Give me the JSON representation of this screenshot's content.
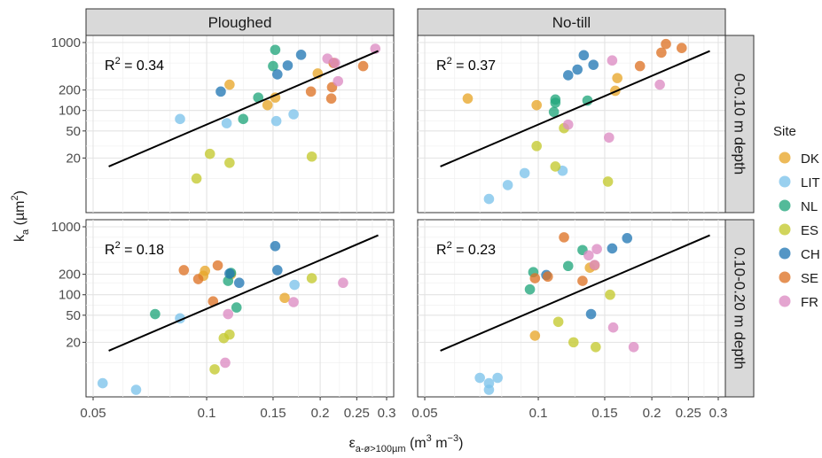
{
  "chart_data": {
    "type": "scatter",
    "x_scale": "log",
    "y_scale": "log",
    "xlim": [
      0.05,
      0.3
    ],
    "ylim": [
      4,
      1000
    ],
    "x_ticks": [
      0.05,
      0.1,
      0.15,
      0.2,
      0.25,
      0.3
    ],
    "x_tick_labels": [
      "0.05",
      "0.1",
      "0.15",
      "0.2",
      "0.25",
      "0.3"
    ],
    "y_ticks": [
      20,
      50,
      100,
      200,
      1000
    ],
    "y_tick_labels": [
      "20",
      "50",
      "100",
      "200",
      "1000"
    ],
    "xlabel": {
      "main": "ε",
      "sub": "a-ø>100µm",
      "rest": " (m",
      "sup1": "3",
      "mid": " m",
      "sup2": "−3",
      "end": ")"
    },
    "ylabel": {
      "main": "k",
      "sub": "a",
      "rest": " (µm",
      "sup": "2",
      "end": ")"
    },
    "grid": true,
    "legend": {
      "title": "Site",
      "placement": "right",
      "entries": [
        {
          "key": "DK",
          "label": "DK",
          "color": "#e8a62a"
        },
        {
          "key": "LIT",
          "label": "LIT",
          "color": "#7cc3eb"
        },
        {
          "key": "NL",
          "label": "NL",
          "color": "#22a77c"
        },
        {
          "key": "ES",
          "label": "ES",
          "color": "#c4c92e"
        },
        {
          "key": "CH",
          "label": "CH",
          "color": "#2478b5"
        },
        {
          "key": "SE",
          "label": "SE",
          "color": "#de7327"
        },
        {
          "key": "FR",
          "label": "FR",
          "color": "#dc8cc3"
        }
      ]
    },
    "columns": [
      "Ploughed",
      "No-till"
    ],
    "rows": [
      "0-0.10 m depth",
      "0.10-0.20 m depth"
    ],
    "panels": [
      {
        "col": 0,
        "row": 0,
        "r2": {
          "prefix": "R",
          "sup": "2",
          "rest": " = 0.34"
        },
        "fit": [
          [
            0.055,
            15
          ],
          [
            0.285,
            750
          ]
        ],
        "points": [
          {
            "x": 0.115,
            "y": 240,
            "site": "DK"
          },
          {
            "x": 0.145,
            "y": 120,
            "site": "DK"
          },
          {
            "x": 0.152,
            "y": 155,
            "site": "DK"
          },
          {
            "x": 0.197,
            "y": 350,
            "site": "DK"
          },
          {
            "x": 0.085,
            "y": 75,
            "site": "LIT"
          },
          {
            "x": 0.113,
            "y": 65,
            "site": "LIT"
          },
          {
            "x": 0.153,
            "y": 70,
            "site": "LIT"
          },
          {
            "x": 0.17,
            "y": 88,
            "site": "LIT"
          },
          {
            "x": 0.125,
            "y": 75,
            "site": "NL"
          },
          {
            "x": 0.137,
            "y": 155,
            "site": "NL"
          },
          {
            "x": 0.15,
            "y": 450,
            "site": "NL"
          },
          {
            "x": 0.152,
            "y": 780,
            "site": "NL"
          },
          {
            "x": 0.102,
            "y": 23,
            "site": "ES"
          },
          {
            "x": 0.094,
            "y": 10,
            "site": "ES"
          },
          {
            "x": 0.115,
            "y": 17,
            "site": "ES"
          },
          {
            "x": 0.19,
            "y": 21,
            "site": "ES"
          },
          {
            "x": 0.109,
            "y": 190,
            "site": "CH"
          },
          {
            "x": 0.154,
            "y": 340,
            "site": "CH"
          },
          {
            "x": 0.164,
            "y": 460,
            "site": "CH"
          },
          {
            "x": 0.178,
            "y": 660,
            "site": "CH"
          },
          {
            "x": 0.189,
            "y": 190,
            "site": "SE"
          },
          {
            "x": 0.214,
            "y": 150,
            "site": "SE"
          },
          {
            "x": 0.215,
            "y": 220,
            "site": "SE"
          },
          {
            "x": 0.217,
            "y": 500,
            "site": "SE"
          },
          {
            "x": 0.26,
            "y": 450,
            "site": "SE"
          },
          {
            "x": 0.209,
            "y": 580,
            "site": "FR"
          },
          {
            "x": 0.219,
            "y": 500,
            "site": "FR"
          },
          {
            "x": 0.223,
            "y": 270,
            "site": "FR"
          },
          {
            "x": 0.28,
            "y": 810,
            "site": "FR"
          }
        ]
      },
      {
        "col": 1,
        "row": 0,
        "r2": {
          "prefix": "R",
          "sup": "2",
          "rest": " = 0.37"
        },
        "fit": [
          [
            0.055,
            15
          ],
          [
            0.285,
            750
          ]
        ],
        "points": [
          {
            "x": 0.065,
            "y": 150,
            "site": "DK"
          },
          {
            "x": 0.099,
            "y": 120,
            "site": "DK"
          },
          {
            "x": 0.16,
            "y": 195,
            "site": "DK"
          },
          {
            "x": 0.162,
            "y": 300,
            "site": "DK"
          },
          {
            "x": 0.074,
            "y": 5,
            "site": "LIT"
          },
          {
            "x": 0.083,
            "y": 8,
            "site": "LIT"
          },
          {
            "x": 0.092,
            "y": 12,
            "site": "LIT"
          },
          {
            "x": 0.116,
            "y": 13,
            "site": "LIT"
          },
          {
            "x": 0.11,
            "y": 95,
            "site": "NL"
          },
          {
            "x": 0.111,
            "y": 145,
            "site": "NL"
          },
          {
            "x": 0.111,
            "y": 130,
            "site": "NL"
          },
          {
            "x": 0.135,
            "y": 140,
            "site": "NL"
          },
          {
            "x": 0.099,
            "y": 30,
            "site": "ES"
          },
          {
            "x": 0.111,
            "y": 15,
            "site": "ES"
          },
          {
            "x": 0.117,
            "y": 55,
            "site": "ES"
          },
          {
            "x": 0.153,
            "y": 9,
            "site": "ES"
          },
          {
            "x": 0.12,
            "y": 330,
            "site": "CH"
          },
          {
            "x": 0.127,
            "y": 400,
            "site": "CH"
          },
          {
            "x": 0.132,
            "y": 650,
            "site": "CH"
          },
          {
            "x": 0.14,
            "y": 470,
            "site": "CH"
          },
          {
            "x": 0.186,
            "y": 450,
            "site": "SE"
          },
          {
            "x": 0.212,
            "y": 710,
            "site": "SE"
          },
          {
            "x": 0.218,
            "y": 950,
            "site": "SE"
          },
          {
            "x": 0.24,
            "y": 830,
            "site": "SE"
          },
          {
            "x": 0.12,
            "y": 62,
            "site": "FR"
          },
          {
            "x": 0.154,
            "y": 40,
            "site": "FR"
          },
          {
            "x": 0.157,
            "y": 545,
            "site": "FR"
          },
          {
            "x": 0.21,
            "y": 240,
            "site": "FR"
          }
        ]
      },
      {
        "col": 0,
        "row": 1,
        "r2": {
          "prefix": "R",
          "sup": "2",
          "rest": " = 0.18"
        },
        "fit": [
          [
            0.055,
            15
          ],
          [
            0.285,
            750
          ]
        ],
        "points": [
          {
            "x": 0.098,
            "y": 190,
            "site": "DK"
          },
          {
            "x": 0.099,
            "y": 225,
            "site": "DK"
          },
          {
            "x": 0.116,
            "y": 200,
            "site": "DK"
          },
          {
            "x": 0.161,
            "y": 90,
            "site": "DK"
          },
          {
            "x": 0.053,
            "y": 5,
            "site": "LIT"
          },
          {
            "x": 0.065,
            "y": 4,
            "site": "LIT"
          },
          {
            "x": 0.085,
            "y": 45,
            "site": "LIT"
          },
          {
            "x": 0.171,
            "y": 140,
            "site": "LIT"
          },
          {
            "x": 0.073,
            "y": 52,
            "site": "NL"
          },
          {
            "x": 0.114,
            "y": 160,
            "site": "NL"
          },
          {
            "x": 0.116,
            "y": 210,
            "site": "NL"
          },
          {
            "x": 0.12,
            "y": 65,
            "site": "NL"
          },
          {
            "x": 0.105,
            "y": 8,
            "site": "ES"
          },
          {
            "x": 0.111,
            "y": 23,
            "site": "ES"
          },
          {
            "x": 0.115,
            "y": 26,
            "site": "ES"
          },
          {
            "x": 0.19,
            "y": 175,
            "site": "ES"
          },
          {
            "x": 0.115,
            "y": 205,
            "site": "CH"
          },
          {
            "x": 0.122,
            "y": 150,
            "site": "CH"
          },
          {
            "x": 0.152,
            "y": 520,
            "site": "CH"
          },
          {
            "x": 0.154,
            "y": 230,
            "site": "CH"
          },
          {
            "x": 0.087,
            "y": 230,
            "site": "SE"
          },
          {
            "x": 0.095,
            "y": 170,
            "site": "SE"
          },
          {
            "x": 0.104,
            "y": 80,
            "site": "SE"
          },
          {
            "x": 0.107,
            "y": 270,
            "site": "SE"
          },
          {
            "x": 0.112,
            "y": 10,
            "site": "FR"
          },
          {
            "x": 0.114,
            "y": 52,
            "site": "FR"
          },
          {
            "x": 0.17,
            "y": 78,
            "site": "FR"
          },
          {
            "x": 0.23,
            "y": 150,
            "site": "FR"
          }
        ]
      },
      {
        "col": 1,
        "row": 1,
        "r2": {
          "prefix": "R",
          "sup": "2",
          "rest": " = 0.23"
        },
        "fit": [
          [
            0.055,
            15
          ],
          [
            0.285,
            750
          ]
        ],
        "points": [
          {
            "x": 0.098,
            "y": 25,
            "site": "DK"
          },
          {
            "x": 0.137,
            "y": 250,
            "site": "DK"
          },
          {
            "x": 0.141,
            "y": 270,
            "site": "DK"
          },
          {
            "x": 0.07,
            "y": 6,
            "site": "LIT"
          },
          {
            "x": 0.074,
            "y": 5,
            "site": "LIT"
          },
          {
            "x": 0.074,
            "y": 4,
            "site": "LIT"
          },
          {
            "x": 0.078,
            "y": 6,
            "site": "LIT"
          },
          {
            "x": 0.095,
            "y": 120,
            "site": "NL"
          },
          {
            "x": 0.097,
            "y": 215,
            "site": "NL"
          },
          {
            "x": 0.12,
            "y": 265,
            "site": "NL"
          },
          {
            "x": 0.131,
            "y": 455,
            "site": "NL"
          },
          {
            "x": 0.113,
            "y": 40,
            "site": "ES"
          },
          {
            "x": 0.124,
            "y": 20,
            "site": "ES"
          },
          {
            "x": 0.142,
            "y": 17,
            "site": "ES"
          },
          {
            "x": 0.155,
            "y": 100,
            "site": "ES"
          },
          {
            "x": 0.105,
            "y": 195,
            "site": "CH"
          },
          {
            "x": 0.138,
            "y": 52,
            "site": "CH"
          },
          {
            "x": 0.157,
            "y": 480,
            "site": "CH"
          },
          {
            "x": 0.172,
            "y": 680,
            "site": "CH"
          },
          {
            "x": 0.098,
            "y": 175,
            "site": "SE"
          },
          {
            "x": 0.106,
            "y": 185,
            "site": "SE"
          },
          {
            "x": 0.117,
            "y": 700,
            "site": "SE"
          },
          {
            "x": 0.131,
            "y": 160,
            "site": "SE"
          },
          {
            "x": 0.136,
            "y": 380,
            "site": "FR"
          },
          {
            "x": 0.141,
            "y": 275,
            "site": "FR"
          },
          {
            "x": 0.143,
            "y": 470,
            "site": "FR"
          },
          {
            "x": 0.158,
            "y": 33,
            "site": "FR"
          },
          {
            "x": 0.179,
            "y": 17,
            "site": "FR"
          }
        ]
      }
    ]
  }
}
